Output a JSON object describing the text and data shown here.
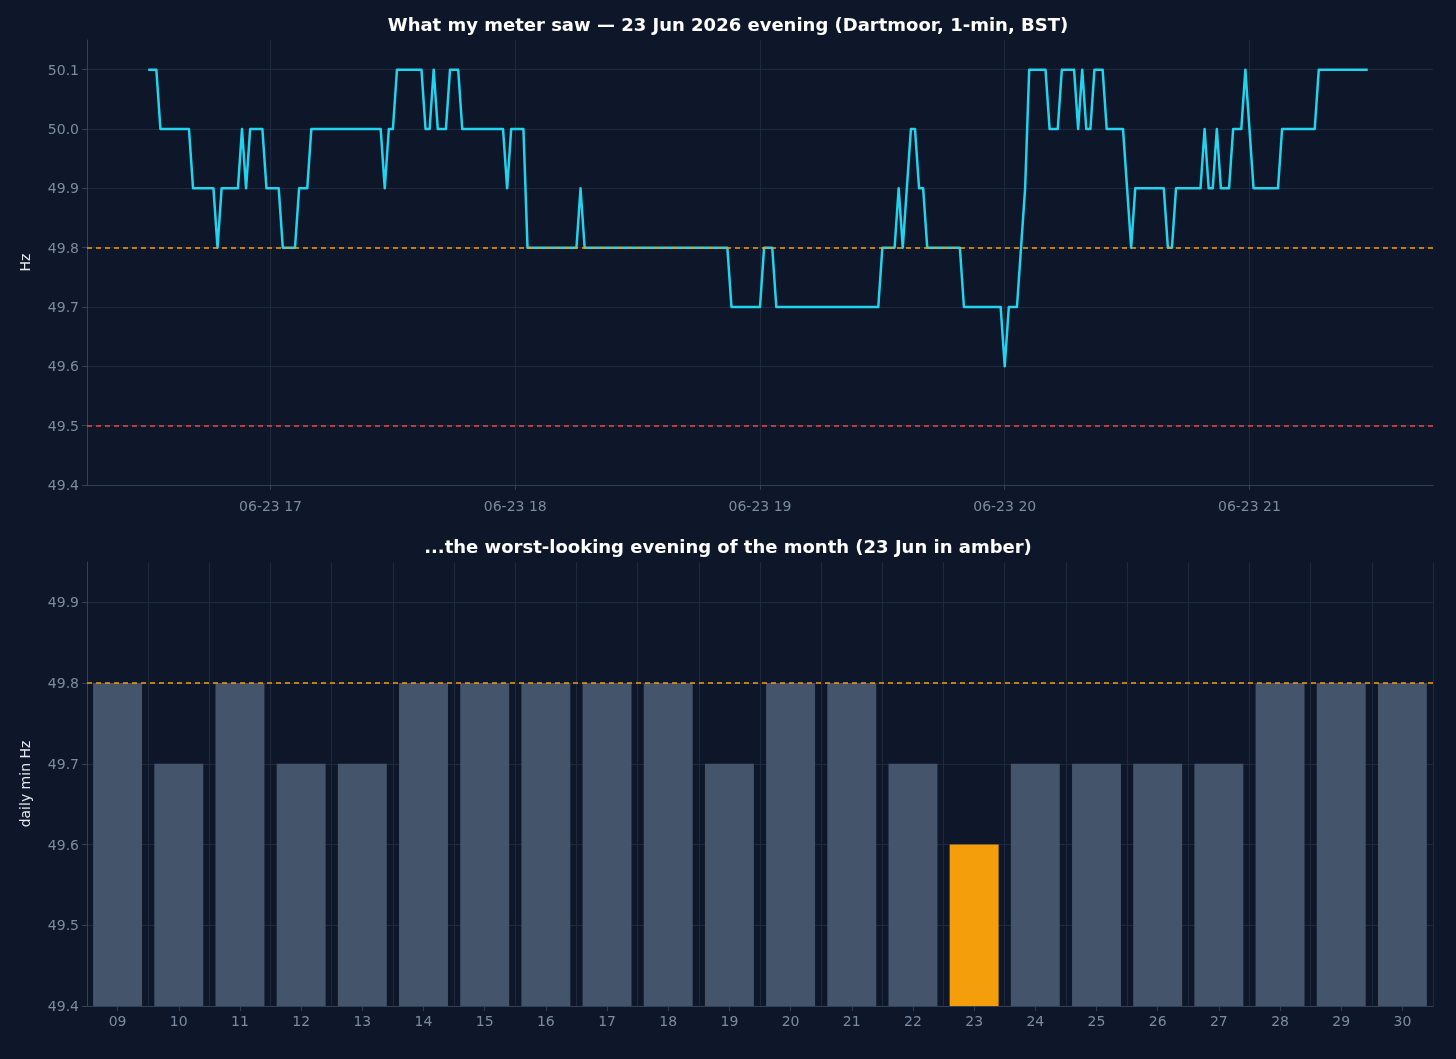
{
  "chart_data": [
    {
      "type": "line",
      "title": "What my meter saw — 23 Jun 2026 evening (Dartmoor, 1-min, BST)",
      "ylabel": "Hz",
      "marker": "none",
      "grid": true,
      "x": [
        "2026-06-23T16:30",
        "2026-06-23T16:32",
        "2026-06-23T16:33",
        "2026-06-23T16:40",
        "2026-06-23T16:41",
        "2026-06-23T16:46",
        "2026-06-23T16:47",
        "2026-06-23T16:48",
        "2026-06-23T16:52",
        "2026-06-23T16:53",
        "2026-06-23T16:54",
        "2026-06-23T16:55",
        "2026-06-23T16:58",
        "2026-06-23T16:59",
        "2026-06-23T17:02",
        "2026-06-23T17:03",
        "2026-06-23T17:06",
        "2026-06-23T17:07",
        "2026-06-23T17:09",
        "2026-06-23T17:10",
        "2026-06-23T17:27",
        "2026-06-23T17:28",
        "2026-06-23T17:29",
        "2026-06-23T17:30",
        "2026-06-23T17:31",
        "2026-06-23T17:37",
        "2026-06-23T17:38",
        "2026-06-23T17:39",
        "2026-06-23T17:40",
        "2026-06-23T17:41",
        "2026-06-23T17:43",
        "2026-06-23T17:44",
        "2026-06-23T17:46",
        "2026-06-23T17:47",
        "2026-06-23T17:57",
        "2026-06-23T17:58",
        "2026-06-23T17:59",
        "2026-06-23T18:02",
        "2026-06-23T18:03",
        "2026-06-23T18:15",
        "2026-06-23T18:16",
        "2026-06-23T18:17",
        "2026-06-23T18:52",
        "2026-06-23T18:53",
        "2026-06-23T19:00",
        "2026-06-23T19:01",
        "2026-06-23T19:03",
        "2026-06-23T19:04",
        "2026-06-23T19:29",
        "2026-06-23T19:30",
        "2026-06-23T19:33",
        "2026-06-23T19:34",
        "2026-06-23T19:35",
        "2026-06-23T19:36",
        "2026-06-23T19:37",
        "2026-06-23T19:38",
        "2026-06-23T19:39",
        "2026-06-23T19:40",
        "2026-06-23T19:41",
        "2026-06-23T19:49",
        "2026-06-23T19:50",
        "2026-06-23T19:59",
        "2026-06-23T20:00",
        "2026-06-23T20:01",
        "2026-06-23T20:03",
        "2026-06-23T20:04",
        "2026-06-23T20:05",
        "2026-06-23T20:06",
        "2026-06-23T20:10",
        "2026-06-23T20:11",
        "2026-06-23T20:13",
        "2026-06-23T20:14",
        "2026-06-23T20:17",
        "2026-06-23T20:18",
        "2026-06-23T20:19",
        "2026-06-23T20:20",
        "2026-06-23T20:21",
        "2026-06-23T20:22",
        "2026-06-23T20:24",
        "2026-06-23T20:25",
        "2026-06-23T20:29",
        "2026-06-23T20:30",
        "2026-06-23T20:31",
        "2026-06-23T20:32",
        "2026-06-23T20:39",
        "2026-06-23T20:40",
        "2026-06-23T20:41",
        "2026-06-23T20:42",
        "2026-06-23T20:48",
        "2026-06-23T20:49",
        "2026-06-23T20:50",
        "2026-06-23T20:51",
        "2026-06-23T20:52",
        "2026-06-23T20:53",
        "2026-06-23T20:55",
        "2026-06-23T20:56",
        "2026-06-23T20:58",
        "2026-06-23T20:59",
        "2026-06-23T21:01",
        "2026-06-23T21:07",
        "2026-06-23T21:08",
        "2026-06-23T21:16",
        "2026-06-23T21:17",
        "2026-06-23T21:29"
      ],
      "series": [
        {
          "color": "#22d3ee",
          "values": [
            50.1,
            50.1,
            50.0,
            50.0,
            49.9,
            49.9,
            49.8,
            49.9,
            49.9,
            50.0,
            49.9,
            50.0,
            50.0,
            49.9,
            49.9,
            49.8,
            49.8,
            49.9,
            49.9,
            50.0,
            50.0,
            49.9,
            50.0,
            50.0,
            50.1,
            50.1,
            50.0,
            50.0,
            50.1,
            50.0,
            50.0,
            50.1,
            50.1,
            50.0,
            50.0,
            49.9,
            50.0,
            50.0,
            49.8,
            49.8,
            49.9,
            49.8,
            49.8,
            49.7,
            49.7,
            49.8,
            49.8,
            49.7,
            49.7,
            49.8,
            49.8,
            49.9,
            49.8,
            49.9,
            50.0,
            50.0,
            49.9,
            49.9,
            49.8,
            49.8,
            49.7,
            49.7,
            49.6,
            49.7,
            49.7,
            49.8,
            49.9,
            50.1,
            50.1,
            50.0,
            50.0,
            50.1,
            50.1,
            50.0,
            50.1,
            50.0,
            50.0,
            50.1,
            50.1,
            50.0,
            50.0,
            49.9,
            49.8,
            49.9,
            49.9,
            49.8,
            49.8,
            49.9,
            49.9,
            50.0,
            49.9,
            49.9,
            50.0,
            49.9,
            49.9,
            50.0,
            50.0,
            50.1,
            49.9,
            49.9,
            50.0,
            50.0,
            50.1,
            50.1
          ]
        }
      ],
      "xlim": [
        "2026-06-23T16:15",
        "2026-06-23T21:45"
      ],
      "xticks": [
        {
          "value": "2026-06-23T17:00",
          "label": "06-23 17"
        },
        {
          "value": "2026-06-23T18:00",
          "label": "06-23 18"
        },
        {
          "value": "2026-06-23T19:00",
          "label": "06-23 19"
        },
        {
          "value": "2026-06-23T20:00",
          "label": "06-23 20"
        },
        {
          "value": "2026-06-23T21:00",
          "label": "06-23 21"
        }
      ],
      "ylim": [
        49.4,
        50.15
      ],
      "yticks": [
        {
          "value": 49.4,
          "label": "49.4"
        },
        {
          "value": 49.5,
          "label": "49.5"
        },
        {
          "value": 49.6,
          "label": "49.6"
        },
        {
          "value": 49.7,
          "label": "49.7"
        },
        {
          "value": 49.8,
          "label": "49.8"
        },
        {
          "value": 49.9,
          "label": "49.9"
        },
        {
          "value": 50.0,
          "label": "50.0"
        },
        {
          "value": 50.1,
          "label": "50.1"
        }
      ],
      "ref_lines": [
        {
          "axis": "y",
          "value": 49.8,
          "color": "#f59e0b",
          "line_style": "dashed"
        },
        {
          "axis": "y",
          "value": 49.5,
          "color": "#ef4444",
          "line_style": "dashed"
        }
      ]
    },
    {
      "type": "bar",
      "title": "...the worst-looking evening of the month (23 Jun in amber)",
      "ylabel": "daily min Hz",
      "grid": true,
      "categories": [
        "09",
        "10",
        "11",
        "12",
        "13",
        "14",
        "15",
        "16",
        "17",
        "18",
        "19",
        "20",
        "21",
        "22",
        "23",
        "24",
        "25",
        "26",
        "27",
        "28",
        "29",
        "30"
      ],
      "values": [
        49.8,
        49.7,
        49.8,
        49.7,
        49.7,
        49.8,
        49.8,
        49.8,
        49.8,
        49.8,
        49.7,
        49.8,
        49.8,
        49.7,
        49.6,
        49.7,
        49.7,
        49.7,
        49.7,
        49.8,
        49.8,
        49.8
      ],
      "colors": [
        "#44546a",
        "#44546a",
        "#44546a",
        "#44546a",
        "#44546a",
        "#44546a",
        "#44546a",
        "#44546a",
        "#44546a",
        "#44546a",
        "#44546a",
        "#44546a",
        "#44546a",
        "#44546a",
        "#f59e0b",
        "#44546a",
        "#44546a",
        "#44546a",
        "#44546a",
        "#44546a",
        "#44546a",
        "#44546a"
      ],
      "ylim": [
        49.4,
        49.95
      ],
      "yticks": [
        49.4,
        49.5,
        49.6,
        49.7,
        49.8,
        49.9
      ],
      "ref_lines": [
        {
          "axis": "y",
          "value": 49.8,
          "color": "#f59e0b",
          "line_style": "dashed"
        }
      ]
    }
  ]
}
